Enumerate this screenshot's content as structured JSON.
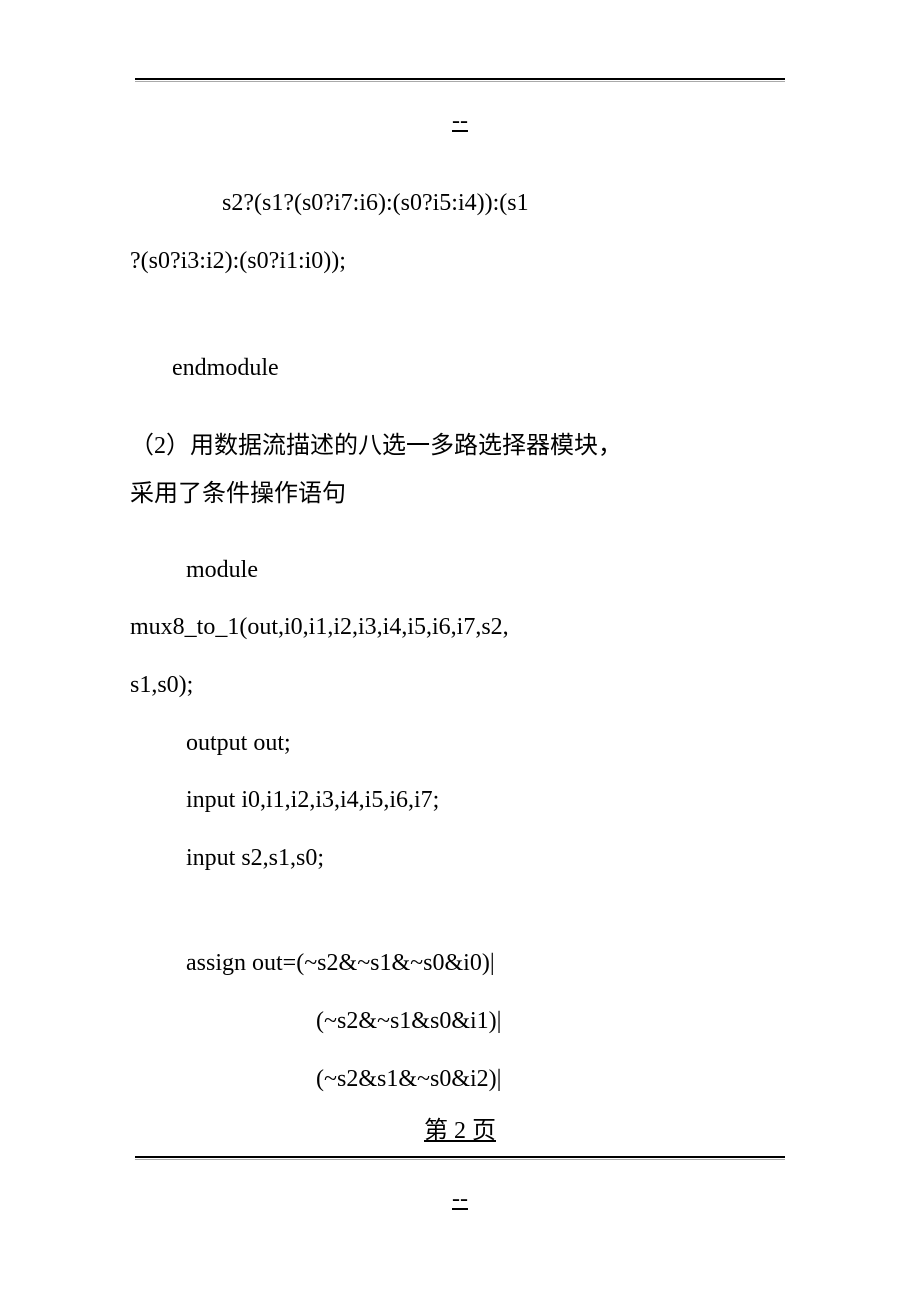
{
  "top_divider": {
    "dashes_underline": "--"
  },
  "content": {
    "line1": "s2?(s1?(s0?i7:i6):(s0?i5:i4)):(s1",
    "line2": "?(s0?i3:i2):(s0?i1:i0));",
    "line3": "endmodule",
    "desc1": "（2）用数据流描述的八选一多路选择器模块，",
    "desc2": "采用了条件操作语句",
    "code1": "module",
    "code2": "mux8_to_1(out,i0,i1,i2,i3,i4,i5,i6,i7,s2,",
    "code3": "s1,s0);",
    "code4": "output out;",
    "code5": "input i0,i1,i2,i3,i4,i5,i6,i7;",
    "code6": "input s2,s1,s0;",
    "code7": "assign out=(~s2&~s1&~s0&i0)|",
    "code8": "(~s2&~s1&s0&i1)|",
    "code9": "(~s2&s1&~s0&i2)|"
  },
  "page_number": "第 2 页",
  "bottom_divider": {
    "dashes_underline": "--"
  },
  "colors": {
    "background": "#ffffff",
    "text": "#000000",
    "line_dark": "#000000",
    "line_light": "#aaaaaa"
  },
  "typography": {
    "font_family": "SimSun",
    "font_size": 24,
    "line_height": 2.4
  }
}
